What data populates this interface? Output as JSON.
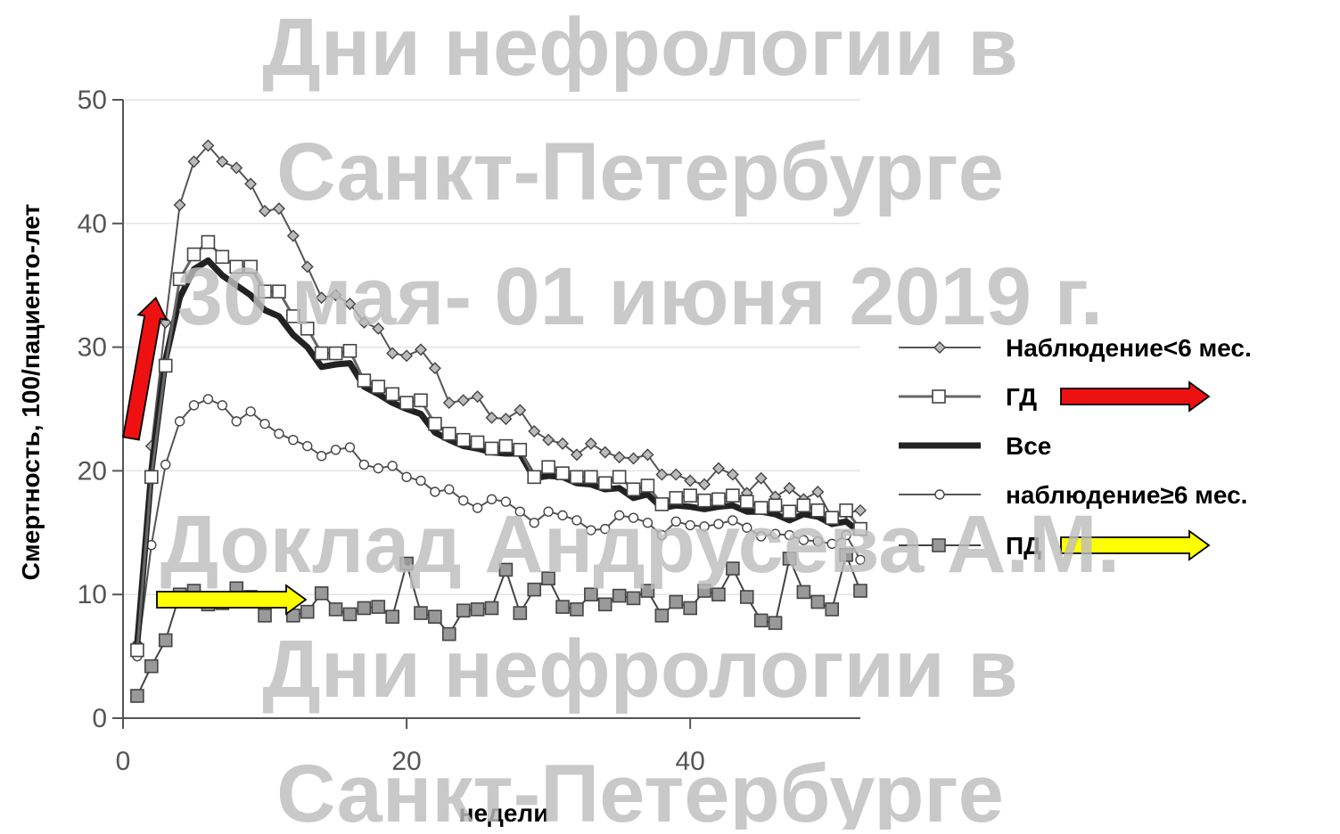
{
  "chart_data": {
    "type": "line",
    "xlabel": "недели",
    "ylabel": "Смертность, 100/пациенто-лет",
    "xlim": [
      0,
      52
    ],
    "ylim": [
      0,
      50
    ],
    "xticks": [
      "0",
      "20",
      "40"
    ],
    "yticks": [
      "0",
      "10",
      "20",
      "30",
      "40",
      "50"
    ],
    "grid": "horizontal",
    "legend_position": "right",
    "series": [
      {
        "name": "Наблюдение<6 мес.",
        "style": "thin line, small diamond markers",
        "x": [
          1,
          2,
          3,
          4,
          5,
          6,
          7,
          8,
          9,
          10,
          11,
          12,
          13,
          14,
          15,
          16,
          17,
          18,
          19,
          20,
          21,
          22,
          23,
          24,
          25,
          26,
          27,
          28,
          29,
          30,
          31,
          32,
          33,
          34,
          35,
          36,
          37,
          38,
          39,
          40,
          41,
          42,
          43,
          44,
          45,
          46,
          47,
          48,
          49,
          50,
          51,
          52
        ],
        "values": [
          6,
          22,
          32,
          41.5,
          45,
          46.3,
          45,
          44.5,
          43.2,
          41,
          41.2,
          39,
          36.5,
          34,
          34.2,
          33.5,
          32,
          31.5,
          29.5,
          29.3,
          29.8,
          28.3,
          25.5,
          25.7,
          26,
          24.3,
          24.2,
          24.9,
          23.2,
          22.5,
          22.2,
          21.3,
          22.2,
          21.5,
          21.1,
          21,
          21.3,
          19.7,
          19.7,
          19.2,
          18.9,
          20.2,
          19.7,
          18.2,
          19.4,
          17.9,
          18.6,
          17.7,
          18.3,
          16.2,
          16.6,
          16.8
        ]
      },
      {
        "name": "ГД",
        "style": "medium line, open square markers",
        "x": [
          1,
          2,
          3,
          4,
          5,
          6,
          7,
          8,
          9,
          10,
          11,
          12,
          13,
          14,
          15,
          16,
          17,
          18,
          19,
          20,
          21,
          22,
          23,
          24,
          25,
          26,
          27,
          28,
          29,
          30,
          31,
          32,
          33,
          34,
          35,
          36,
          37,
          38,
          39,
          40,
          41,
          42,
          43,
          44,
          45,
          46,
          47,
          48,
          49,
          50,
          51,
          52
        ],
        "values": [
          5.5,
          19.5,
          28.5,
          35.5,
          37.5,
          38.5,
          37.3,
          36.5,
          36.5,
          34.5,
          34.5,
          32.5,
          31.5,
          29.5,
          29.5,
          29.7,
          27.3,
          26.8,
          26.2,
          25.5,
          25.7,
          23.8,
          23,
          22.5,
          22.3,
          21.8,
          22,
          21.7,
          19.5,
          20.3,
          19.8,
          19.5,
          19.5,
          19,
          19.5,
          18.5,
          18.8,
          17.3,
          17.8,
          18,
          17.6,
          17.7,
          18,
          17.5,
          17,
          17.2,
          16.7,
          17.2,
          16.8,
          16.2,
          16.8,
          15.3
        ]
      },
      {
        "name": "Все",
        "style": "thick line, no markers",
        "x": [
          1,
          2,
          3,
          4,
          5,
          6,
          7,
          8,
          9,
          10,
          11,
          12,
          13,
          14,
          15,
          16,
          17,
          18,
          19,
          20,
          21,
          22,
          23,
          24,
          25,
          26,
          27,
          28,
          29,
          30,
          31,
          32,
          33,
          34,
          35,
          36,
          37,
          38,
          39,
          40,
          41,
          42,
          43,
          44,
          45,
          46,
          47,
          48,
          49,
          50,
          51,
          52
        ],
        "values": [
          6,
          20,
          29,
          34,
          36.3,
          37,
          35.8,
          35,
          34.2,
          33,
          32.5,
          31,
          30,
          28.4,
          28.6,
          28.7,
          26.8,
          26.2,
          25.5,
          25,
          24.6,
          23.1,
          22.5,
          22,
          21.8,
          21.5,
          21.4,
          21.4,
          19.4,
          19.6,
          19.5,
          19,
          18.9,
          18.5,
          18.6,
          17.8,
          18.1,
          17,
          17.2,
          17.1,
          16.9,
          17.1,
          17.2,
          16.7,
          16.7,
          16.5,
          16,
          16.5,
          16.3,
          15.7,
          15.9,
          15
        ]
      },
      {
        "name": "наблюдение≥6 мес.",
        "style": "thin line, small open circle markers",
        "x": [
          1,
          2,
          3,
          4,
          5,
          6,
          7,
          8,
          9,
          10,
          11,
          12,
          13,
          14,
          15,
          16,
          17,
          18,
          19,
          20,
          21,
          22,
          23,
          24,
          25,
          26,
          27,
          28,
          29,
          30,
          31,
          32,
          33,
          34,
          35,
          36,
          37,
          38,
          39,
          40,
          41,
          42,
          43,
          44,
          45,
          46,
          47,
          48,
          49,
          50,
          51,
          52
        ],
        "values": [
          5,
          14,
          20.5,
          24,
          25.3,
          25.8,
          25.3,
          24,
          24.8,
          23.8,
          23,
          22.5,
          22,
          21.2,
          21.7,
          21.9,
          20.5,
          20.2,
          20.4,
          19.5,
          19.2,
          18.3,
          18.5,
          17.6,
          17,
          17.7,
          17.5,
          16.7,
          15.8,
          16.7,
          16.4,
          16,
          15.2,
          15.3,
          16.4,
          16.2,
          15.8,
          14.8,
          15.9,
          15.6,
          15.5,
          15.7,
          16,
          15.4,
          14.7,
          14.9,
          14.8,
          14.4,
          14.3,
          14.1,
          14.8,
          12.8
        ]
      },
      {
        "name": "ПД",
        "style": "thin line, filled grey square markers",
        "x": [
          1,
          2,
          3,
          4,
          5,
          6,
          7,
          8,
          9,
          10,
          11,
          12,
          13,
          14,
          15,
          16,
          17,
          18,
          19,
          20,
          21,
          22,
          23,
          24,
          25,
          26,
          27,
          28,
          29,
          30,
          31,
          32,
          33,
          34,
          35,
          36,
          37,
          38,
          39,
          40,
          41,
          42,
          43,
          44,
          45,
          46,
          47,
          48,
          49,
          50,
          51,
          52
        ],
        "values": [
          1.8,
          4.2,
          6.3,
          10,
          10.3,
          9.2,
          9.3,
          10.5,
          9.8,
          8.3,
          9.6,
          8.3,
          8.6,
          10.1,
          8.8,
          8.4,
          8.9,
          9,
          8.2,
          12.5,
          8.5,
          8.2,
          6.8,
          8.7,
          8.8,
          8.9,
          12,
          8.5,
          10.4,
          11.3,
          9,
          8.8,
          10,
          9.2,
          9.9,
          9.7,
          10.3,
          8.3,
          9.4,
          8.9,
          10.3,
          10,
          12.1,
          9.8,
          7.9,
          7.7,
          12.9,
          10.2,
          9.4,
          8.8,
          13.2,
          10.3
        ]
      }
    ]
  },
  "annotations": {
    "red_arrows": [
      "series: ГД",
      "legend: ГД"
    ],
    "yellow_arrows": [
      "series: ПД",
      "legend: ПД"
    ],
    "arrow_colors": {
      "red": "#ee1111",
      "yellow": "#ffff00",
      "outline": "#000000"
    }
  },
  "watermark": {
    "lines": [
      "Дни нефрологии в",
      "Санкт-Петербурге",
      "30 мая- 01 июня 2019 г.",
      "Доклад Андрусева А.М.",
      "Дни нефрологии в",
      "Санкт-Петербурге"
    ],
    "color": "#bdbdbd"
  }
}
